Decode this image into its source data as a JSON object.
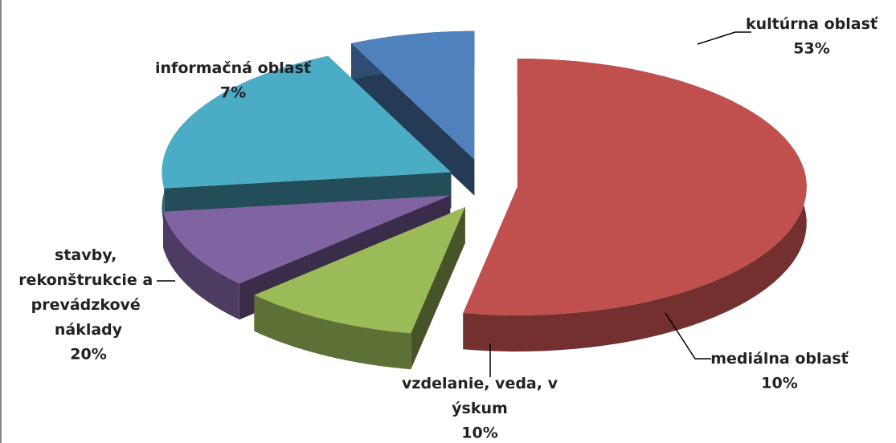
{
  "chart_data": {
    "type": "pie3d",
    "categories": [
      "kultúrna oblasť",
      "mediálna oblasť",
      "vzdelanie, veda, výskum",
      "stavby, rekonštrukcie a prevádzkové náklady",
      "informačná oblasť"
    ],
    "values": [
      53,
      10,
      10,
      20,
      7
    ],
    "value_labels": [
      "53%",
      "10%",
      "10%",
      "20%",
      "7%"
    ],
    "colors": [
      "#c0504d",
      "#9bbb59",
      "#8064a2",
      "#4bacc6",
      "#4f81bd"
    ]
  }
}
